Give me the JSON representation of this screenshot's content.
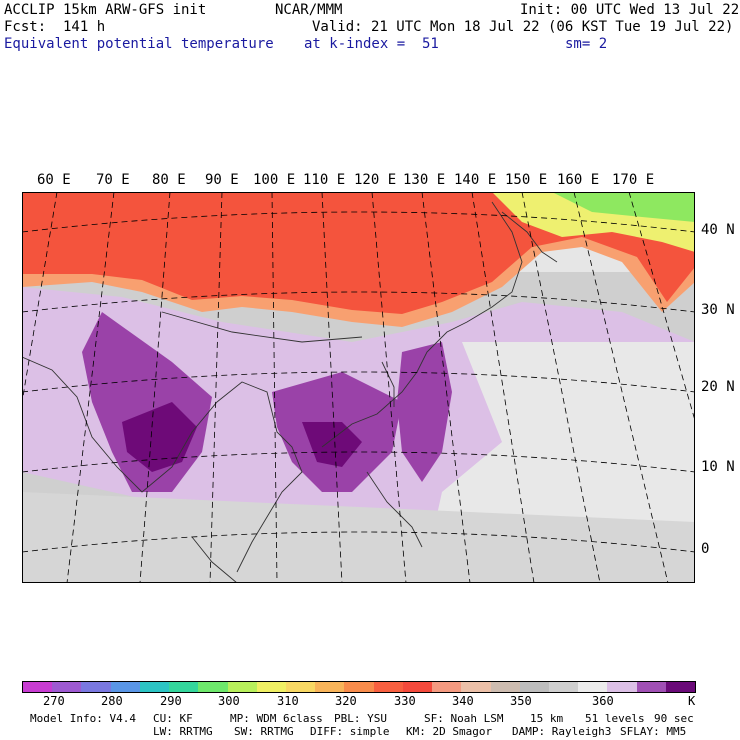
{
  "header": {
    "model_title": "ACCLIP 15km ARW-GFS init",
    "org": "NCAR/MMM",
    "init": "Init: 00 UTC Wed 13 Jul 22",
    "forecast": "Fcst:  141 h",
    "valid": "Valid: 21 UTC Mon 18 Jul 22 (06 KST Tue 19 Jul 22)",
    "field": "Equivalent potential temperature",
    "level": "at k-index =  51",
    "smoothing": "sm= 2"
  },
  "map": {
    "lon_labels": [
      "60 E",
      "70 E",
      "80 E",
      "90 E",
      "100 E",
      "110 E",
      "120 E",
      "130 E",
      "140 E",
      "150 E",
      "160 E",
      "170 E"
    ],
    "lat_labels": [
      "40 N",
      "30 N",
      "20 N",
      "10 N",
      "0"
    ],
    "colors": {
      "hot": "#f4543d",
      "warm": "#f8a070",
      "gray_dark": "#b9b9b9",
      "gray_light": "#e6e6e6",
      "lilac": "#dcc0e6",
      "purple": "#9a42a8",
      "deep_purple": "#6e0a78",
      "green": "#8ee860",
      "yellow": "#eef070",
      "coast": "#333333"
    }
  },
  "colorbar": {
    "colors": [
      "#c83cd2",
      "#9e5ad2",
      "#7a78e0",
      "#5a96e6",
      "#2cc4c4",
      "#34d69c",
      "#6ee86c",
      "#b8f05c",
      "#f0f064",
      "#f8d864",
      "#f8b45a",
      "#f88c4c",
      "#f86040",
      "#f44a3c",
      "#f49a80",
      "#ecc0a8",
      "#cdbcb0",
      "#bdbdbd",
      "#cfcfcf",
      "#ececec",
      "#dcc0e6",
      "#a050b4",
      "#6a0a78"
    ],
    "labels": [
      "270",
      "280",
      "290",
      "300",
      "310",
      "320",
      "330",
      "340",
      "350",
      "360"
    ],
    "unit": "K"
  },
  "footer": {
    "line1": [
      "Model Info: V4.4",
      "CU: KF",
      "MP: WDM 6class",
      "PBL: YSU",
      "SF: Noah LSM",
      "15 km",
      "51 levels",
      "90 sec"
    ],
    "line2": [
      "LW: RRTMG",
      "SW: RRTMG",
      "DIFF: simple",
      "KM: 2D Smagor",
      "DAMP: Rayleigh3",
      "SFLAY: MM5"
    ]
  }
}
